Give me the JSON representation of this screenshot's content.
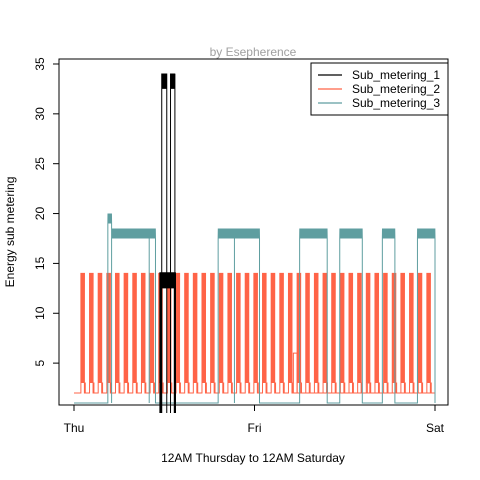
{
  "chart_data": {
    "type": "line",
    "title": "",
    "subtitle": "by Esepherence",
    "xlabel": "12AM Thursday to 12AM Saturday",
    "ylabel": "Energy sub metering",
    "x_ticks": [
      "Thu",
      "Fri",
      "Sat"
    ],
    "xlim": [
      0,
      2880
    ],
    "ylim": [
      0.8,
      35.5
    ],
    "y_ticks": [
      5,
      10,
      15,
      20,
      25,
      30,
      35
    ],
    "grid": false,
    "legend_position": "top-right",
    "series": [
      {
        "name": "Sub_metering_1",
        "color": "#000000",
        "baseline": 0,
        "spikes": [
          {
            "start": 700,
            "end": 740,
            "value": 34
          },
          {
            "start": 770,
            "end": 805,
            "value": 34
          },
          {
            "start": 690,
            "end": 805,
            "value": 14
          }
        ]
      },
      {
        "name": "Sub_metering_2",
        "color": "#FF6347",
        "baseline": 2,
        "on_value": 14,
        "cycle_period": 69,
        "cycle_on_duration": 28,
        "cycle_first_on": 55,
        "extra_spikes": [
          {
            "start": 1750,
            "end": 1780,
            "value": 6
          },
          {
            "start": 2340,
            "end": 2365,
            "value": 3
          }
        ]
      },
      {
        "name": "Sub_metering_3",
        "color": "#5F9EA0",
        "baseline": 1,
        "blocks": [
          {
            "start": 270,
            "end": 300,
            "value": 19
          },
          {
            "start": 300,
            "end": 600,
            "value": 17.5
          },
          {
            "start": 600,
            "end": 650,
            "value": 17.5
          },
          {
            "start": 650,
            "end": 1150,
            "value": 1
          },
          {
            "start": 1150,
            "end": 1280,
            "value": 17.5
          },
          {
            "start": 1280,
            "end": 1480,
            "value": 17.5
          },
          {
            "start": 1480,
            "end": 1800,
            "value": 1
          },
          {
            "start": 1800,
            "end": 2020,
            "value": 17.5
          },
          {
            "start": 2020,
            "end": 2120,
            "value": 1
          },
          {
            "start": 2120,
            "end": 2300,
            "value": 17.5
          },
          {
            "start": 2300,
            "end": 2460,
            "value": 1
          },
          {
            "start": 2460,
            "end": 2560,
            "value": 17.5
          },
          {
            "start": 2560,
            "end": 2740,
            "value": 1
          },
          {
            "start": 2740,
            "end": 2880,
            "value": 17.5
          }
        ]
      }
    ]
  }
}
